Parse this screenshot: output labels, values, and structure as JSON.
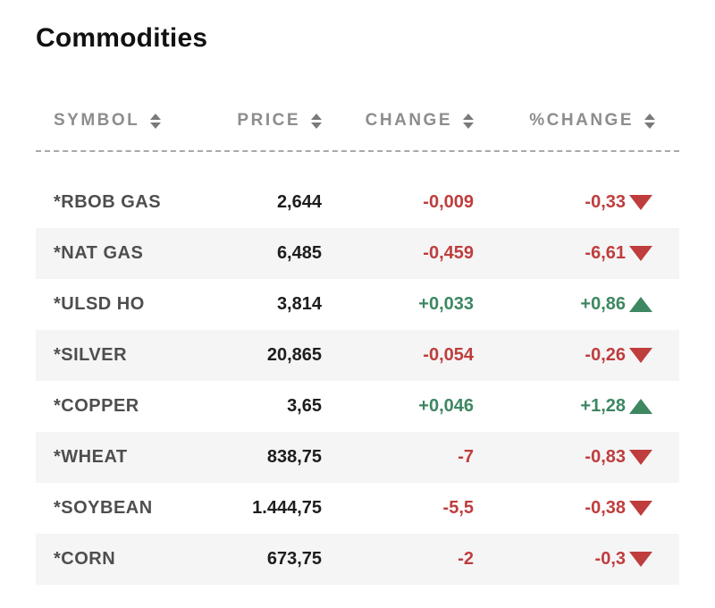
{
  "page": {
    "title": "Commodities"
  },
  "colors": {
    "negative": "#bf3d3d",
    "positive": "#3d8762",
    "header_text": "#8d8d8d",
    "row_stripe": "#f5f5f6",
    "symbol_text": "#4e4e4e",
    "price_text": "#1d1d1d"
  },
  "table": {
    "headers": [
      {
        "label": "SYMBOL",
        "icon": "sort-arrows-icon"
      },
      {
        "label": "PRICE",
        "icon": "sort-arrows-icon"
      },
      {
        "label": "CHANGE",
        "icon": "sort-arrows-icon"
      },
      {
        "label": "%CHANGE",
        "icon": "sort-arrows-icon"
      }
    ],
    "rows": [
      {
        "symbol": "*RBOB GAS",
        "price": "2,644",
        "change": "-0,009",
        "pct_change": "-0,33",
        "direction": "down"
      },
      {
        "symbol": "*NAT GAS",
        "price": "6,485",
        "change": "-0,459",
        "pct_change": "-6,61",
        "direction": "down"
      },
      {
        "symbol": "*ULSD HO",
        "price": "3,814",
        "change": "+0,033",
        "pct_change": "+0,86",
        "direction": "up"
      },
      {
        "symbol": "*SILVER",
        "price": "20,865",
        "change": "-0,054",
        "pct_change": "-0,26",
        "direction": "down"
      },
      {
        "symbol": "*COPPER",
        "price": "3,65",
        "change": "+0,046",
        "pct_change": "+1,28",
        "direction": "up"
      },
      {
        "symbol": "*WHEAT",
        "price": "838,75",
        "change": "-7",
        "pct_change": "-0,83",
        "direction": "down"
      },
      {
        "symbol": "*SOYBEAN",
        "price": "1.444,75",
        "change": "-5,5",
        "pct_change": "-0,38",
        "direction": "down"
      },
      {
        "symbol": "*CORN",
        "price": "673,75",
        "change": "-2",
        "pct_change": "-0,3",
        "direction": "down"
      }
    ]
  },
  "chart_data": {
    "type": "table",
    "title": "Commodities",
    "columns": [
      "SYMBOL",
      "PRICE",
      "CHANGE",
      "%CHANGE"
    ],
    "rows": [
      [
        "*RBOB GAS",
        "2,644",
        "-0,009",
        "-0,33"
      ],
      [
        "*NAT GAS",
        "6,485",
        "-0,459",
        "-6,61"
      ],
      [
        "*ULSD HO",
        "3,814",
        "+0,033",
        "+0,86"
      ],
      [
        "*SILVER",
        "20,865",
        "-0,054",
        "-0,26"
      ],
      [
        "*COPPER",
        "3,65",
        "+0,046",
        "+1,28"
      ],
      [
        "*WHEAT",
        "838,75",
        "-7",
        "-0,83"
      ],
      [
        "*SOYBEAN",
        "1.444,75",
        "-5,5",
        "-0,38"
      ],
      [
        "*CORN",
        "673,75",
        "-2",
        "-0,3"
      ]
    ],
    "directions": [
      "down",
      "down",
      "up",
      "down",
      "up",
      "down",
      "down",
      "down"
    ],
    "notes": "red = negative change, green = positive change; decimal comma formatting"
  }
}
